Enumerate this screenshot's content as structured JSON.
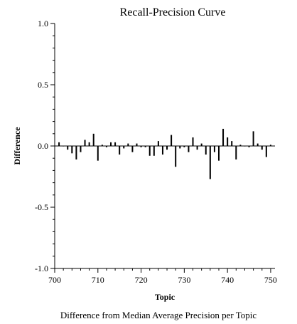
{
  "chart_data": {
    "type": "bar",
    "title": "Recall-Precision Curve",
    "xlabel": "Topic",
    "ylabel": "Difference",
    "caption": "Difference from Median Average Precision per Topic",
    "xlim": [
      700,
      751
    ],
    "ylim": [
      -1.0,
      1.0
    ],
    "xticks": [
      700,
      710,
      720,
      730,
      740,
      750
    ],
    "xtick_labels": [
      "700",
      "710",
      "720",
      "730",
      "740",
      "750"
    ],
    "yticks": [
      1.0,
      0.5,
      0.0,
      -0.5,
      -1.0
    ],
    "ytick_labels": [
      "1.0",
      "0.5",
      "0.0",
      "-0.5",
      "-1.0"
    ],
    "grid": false,
    "x": [
      701,
      702,
      703,
      704,
      705,
      706,
      707,
      708,
      709,
      710,
      711,
      712,
      713,
      714,
      715,
      716,
      717,
      718,
      719,
      720,
      721,
      722,
      723,
      724,
      725,
      726,
      727,
      728,
      729,
      730,
      731,
      732,
      733,
      734,
      735,
      736,
      737,
      738,
      739,
      740,
      741,
      742,
      743,
      744,
      745,
      746,
      747,
      748,
      749,
      750
    ],
    "values": [
      0.03,
      0.0,
      -0.03,
      -0.06,
      -0.11,
      -0.05,
      0.05,
      0.03,
      0.1,
      -0.12,
      0.01,
      -0.01,
      0.03,
      0.03,
      -0.07,
      -0.02,
      0.02,
      -0.05,
      0.02,
      -0.01,
      -0.01,
      -0.08,
      -0.08,
      0.04,
      -0.07,
      -0.03,
      0.09,
      -0.17,
      -0.02,
      -0.01,
      -0.05,
      0.07,
      -0.03,
      0.02,
      -0.07,
      -0.27,
      -0.05,
      -0.12,
      0.14,
      0.07,
      0.04,
      -0.11,
      0.01,
      0.0,
      -0.01,
      0.12,
      0.02,
      -0.03,
      -0.09,
      0.01
    ]
  }
}
